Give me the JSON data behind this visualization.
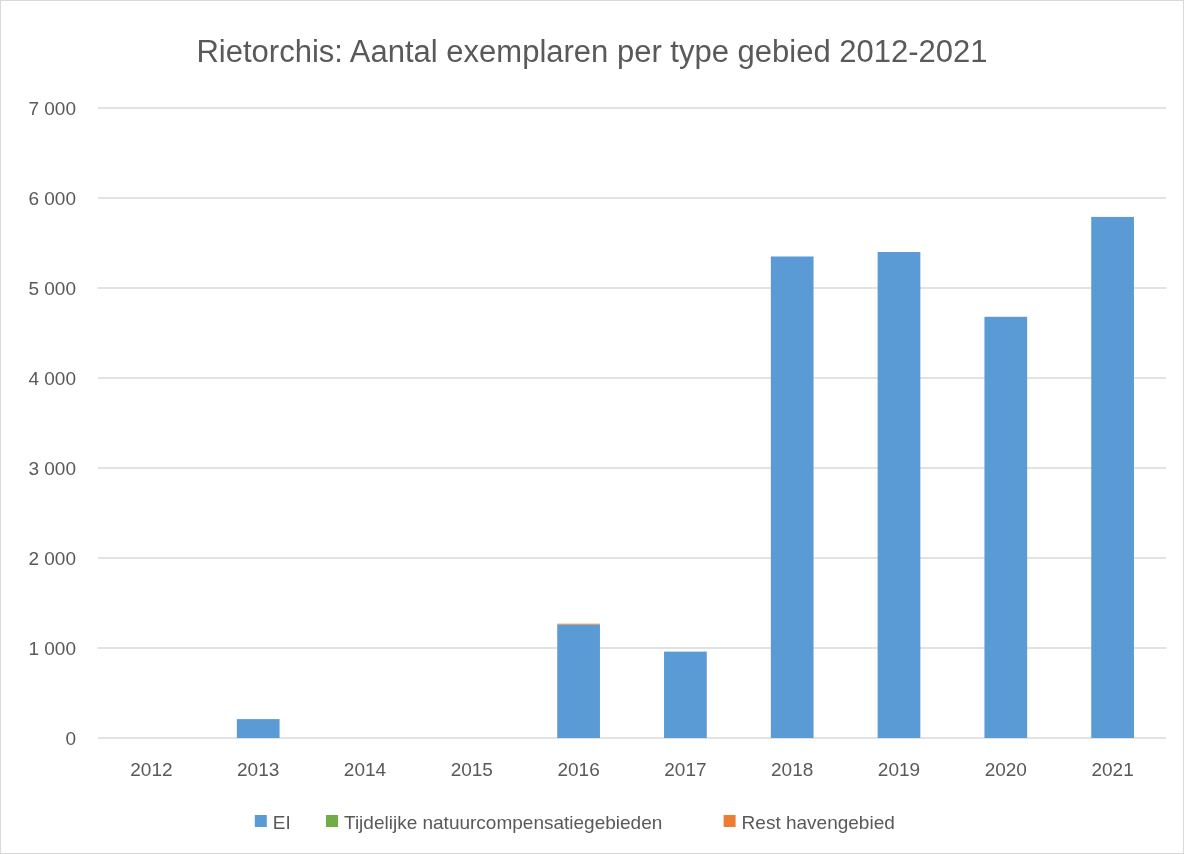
{
  "chart_data": {
    "type": "bar",
    "stacked": true,
    "title": "Rietorchis: Aantal exemplaren per type gebied 2012-2021",
    "categories": [
      "2012",
      "2013",
      "2014",
      "2015",
      "2016",
      "2017",
      "2018",
      "2019",
      "2020",
      "2021"
    ],
    "series": [
      {
        "name": "EI",
        "color": "#5b9bd5",
        "values": [
          0,
          210,
          0,
          0,
          1260,
          960,
          5350,
          5400,
          4680,
          5790
        ]
      },
      {
        "name": "Tijdelijke natuurcompensatiegebieden",
        "color": "#70ad47",
        "values": [
          0,
          0,
          0,
          0,
          0,
          0,
          0,
          0,
          0,
          0
        ]
      },
      {
        "name": "Rest havengebied",
        "color": "#ed7d31",
        "values": [
          0,
          0,
          0,
          0,
          10,
          0,
          0,
          0,
          0,
          0
        ]
      }
    ],
    "ylim": [
      0,
      7000
    ],
    "yticks": [
      {
        "value": 0,
        "label": "0"
      },
      {
        "value": 1000,
        "label": "1 000"
      },
      {
        "value": 2000,
        "label": "2 000"
      },
      {
        "value": 3000,
        "label": "3 000"
      },
      {
        "value": 4000,
        "label": "4 000"
      },
      {
        "value": 5000,
        "label": "5 000"
      },
      {
        "value": 6000,
        "label": "6 000"
      },
      {
        "value": 7000,
        "label": "7 000"
      }
    ],
    "grid": "y",
    "legend": "bottom"
  }
}
